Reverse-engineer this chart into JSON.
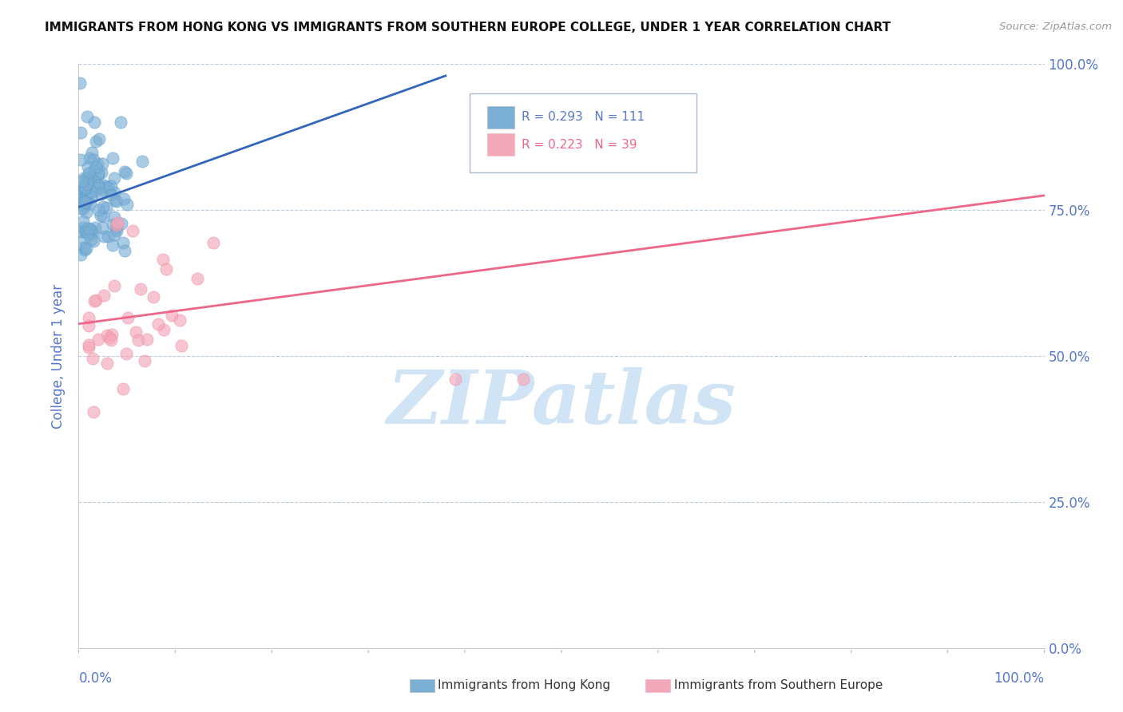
{
  "title": "IMMIGRANTS FROM HONG KONG VS IMMIGRANTS FROM SOUTHERN EUROPE COLLEGE, UNDER 1 YEAR CORRELATION CHART",
  "source": "Source: ZipAtlas.com",
  "ylabel_label": "College, Under 1 year",
  "ytick_labels": [
    "0.0%",
    "25.0%",
    "50.0%",
    "75.0%",
    "100.0%"
  ],
  "ytick_values": [
    0.0,
    0.25,
    0.5,
    0.75,
    1.0
  ],
  "xtick_left": "0.0%",
  "xtick_right": "100.0%",
  "xlim": [
    0.0,
    1.0
  ],
  "ylim": [
    0.0,
    1.0
  ],
  "legend_blue_R": "R = 0.293",
  "legend_blue_N": "N = 111",
  "legend_pink_R": "R = 0.223",
  "legend_pink_N": "N = 39",
  "blue_dot_color": "#7BAFD4",
  "blue_dot_edge": "#5599CC",
  "pink_dot_color": "#F4A7B9",
  "pink_dot_edge": "#EE8899",
  "blue_line_color": "#3366BB",
  "pink_line_color": "#EE6688",
  "axis_color": "#5577CC",
  "grid_color": "#BBCCDD",
  "bg_color": "#FFFFFF",
  "watermark_color": "#D0E4F5",
  "legend_text_blue": "#5577CC",
  "legend_text_pink": "#EE6688",
  "blue_line_x0": 0.0,
  "blue_line_y0": 0.755,
  "blue_line_x1": 0.38,
  "blue_line_y1": 0.98,
  "pink_line_x0": 0.0,
  "pink_line_y0": 0.555,
  "pink_line_x1": 1.0,
  "pink_line_y1": 0.775
}
